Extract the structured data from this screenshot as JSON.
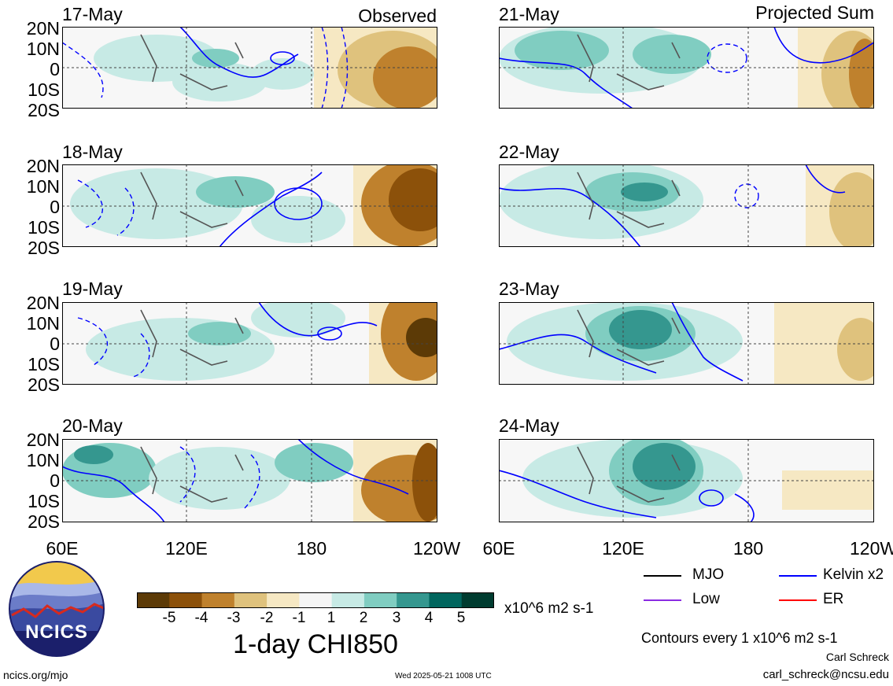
{
  "headers": {
    "left": "Observed",
    "right": "Projected Sum"
  },
  "panels_left": [
    {
      "date": "17-May"
    },
    {
      "date": "18-May"
    },
    {
      "date": "19-May"
    },
    {
      "date": "20-May"
    }
  ],
  "panels_right": [
    {
      "date": "21-May"
    },
    {
      "date": "22-May"
    },
    {
      "date": "23-May"
    },
    {
      "date": "24-May"
    }
  ],
  "lat_labels": [
    "20N",
    "10N",
    "0",
    "10S",
    "20S"
  ],
  "lon_labels": [
    "60E",
    "120E",
    "180",
    "120W"
  ],
  "colorbar": {
    "colors": [
      "#5c3a06",
      "#8c510a",
      "#bf812d",
      "#dfc27d",
      "#f6e8c3",
      "#f5f5f5",
      "#c7eae5",
      "#80cdc1",
      "#35978f",
      "#01665e",
      "#003c30"
    ],
    "ticks": [
      "-5",
      "-4",
      "-3",
      "-2",
      "-1",
      "1",
      "2",
      "3",
      "4",
      "5"
    ],
    "units": "x10^6 m2 s-1",
    "title": "1-day CHI850"
  },
  "legend": [
    {
      "label": "MJO",
      "color": "#000000"
    },
    {
      "label": "Kelvin x2",
      "color": "#0000ff"
    },
    {
      "label": "Low",
      "color": "#8a2be2"
    },
    {
      "label": "ER",
      "color": "#ff0000"
    }
  ],
  "contour_note": "Contours every 1 x10^6 m2 s-1",
  "author": "Carl Schreck",
  "email": "carl_schreck@ncsu.edu",
  "website": "ncics.org/mjo",
  "timestamp": "Wed 2025-05-21 1008 UTC",
  "logo_text": "NCICS"
}
